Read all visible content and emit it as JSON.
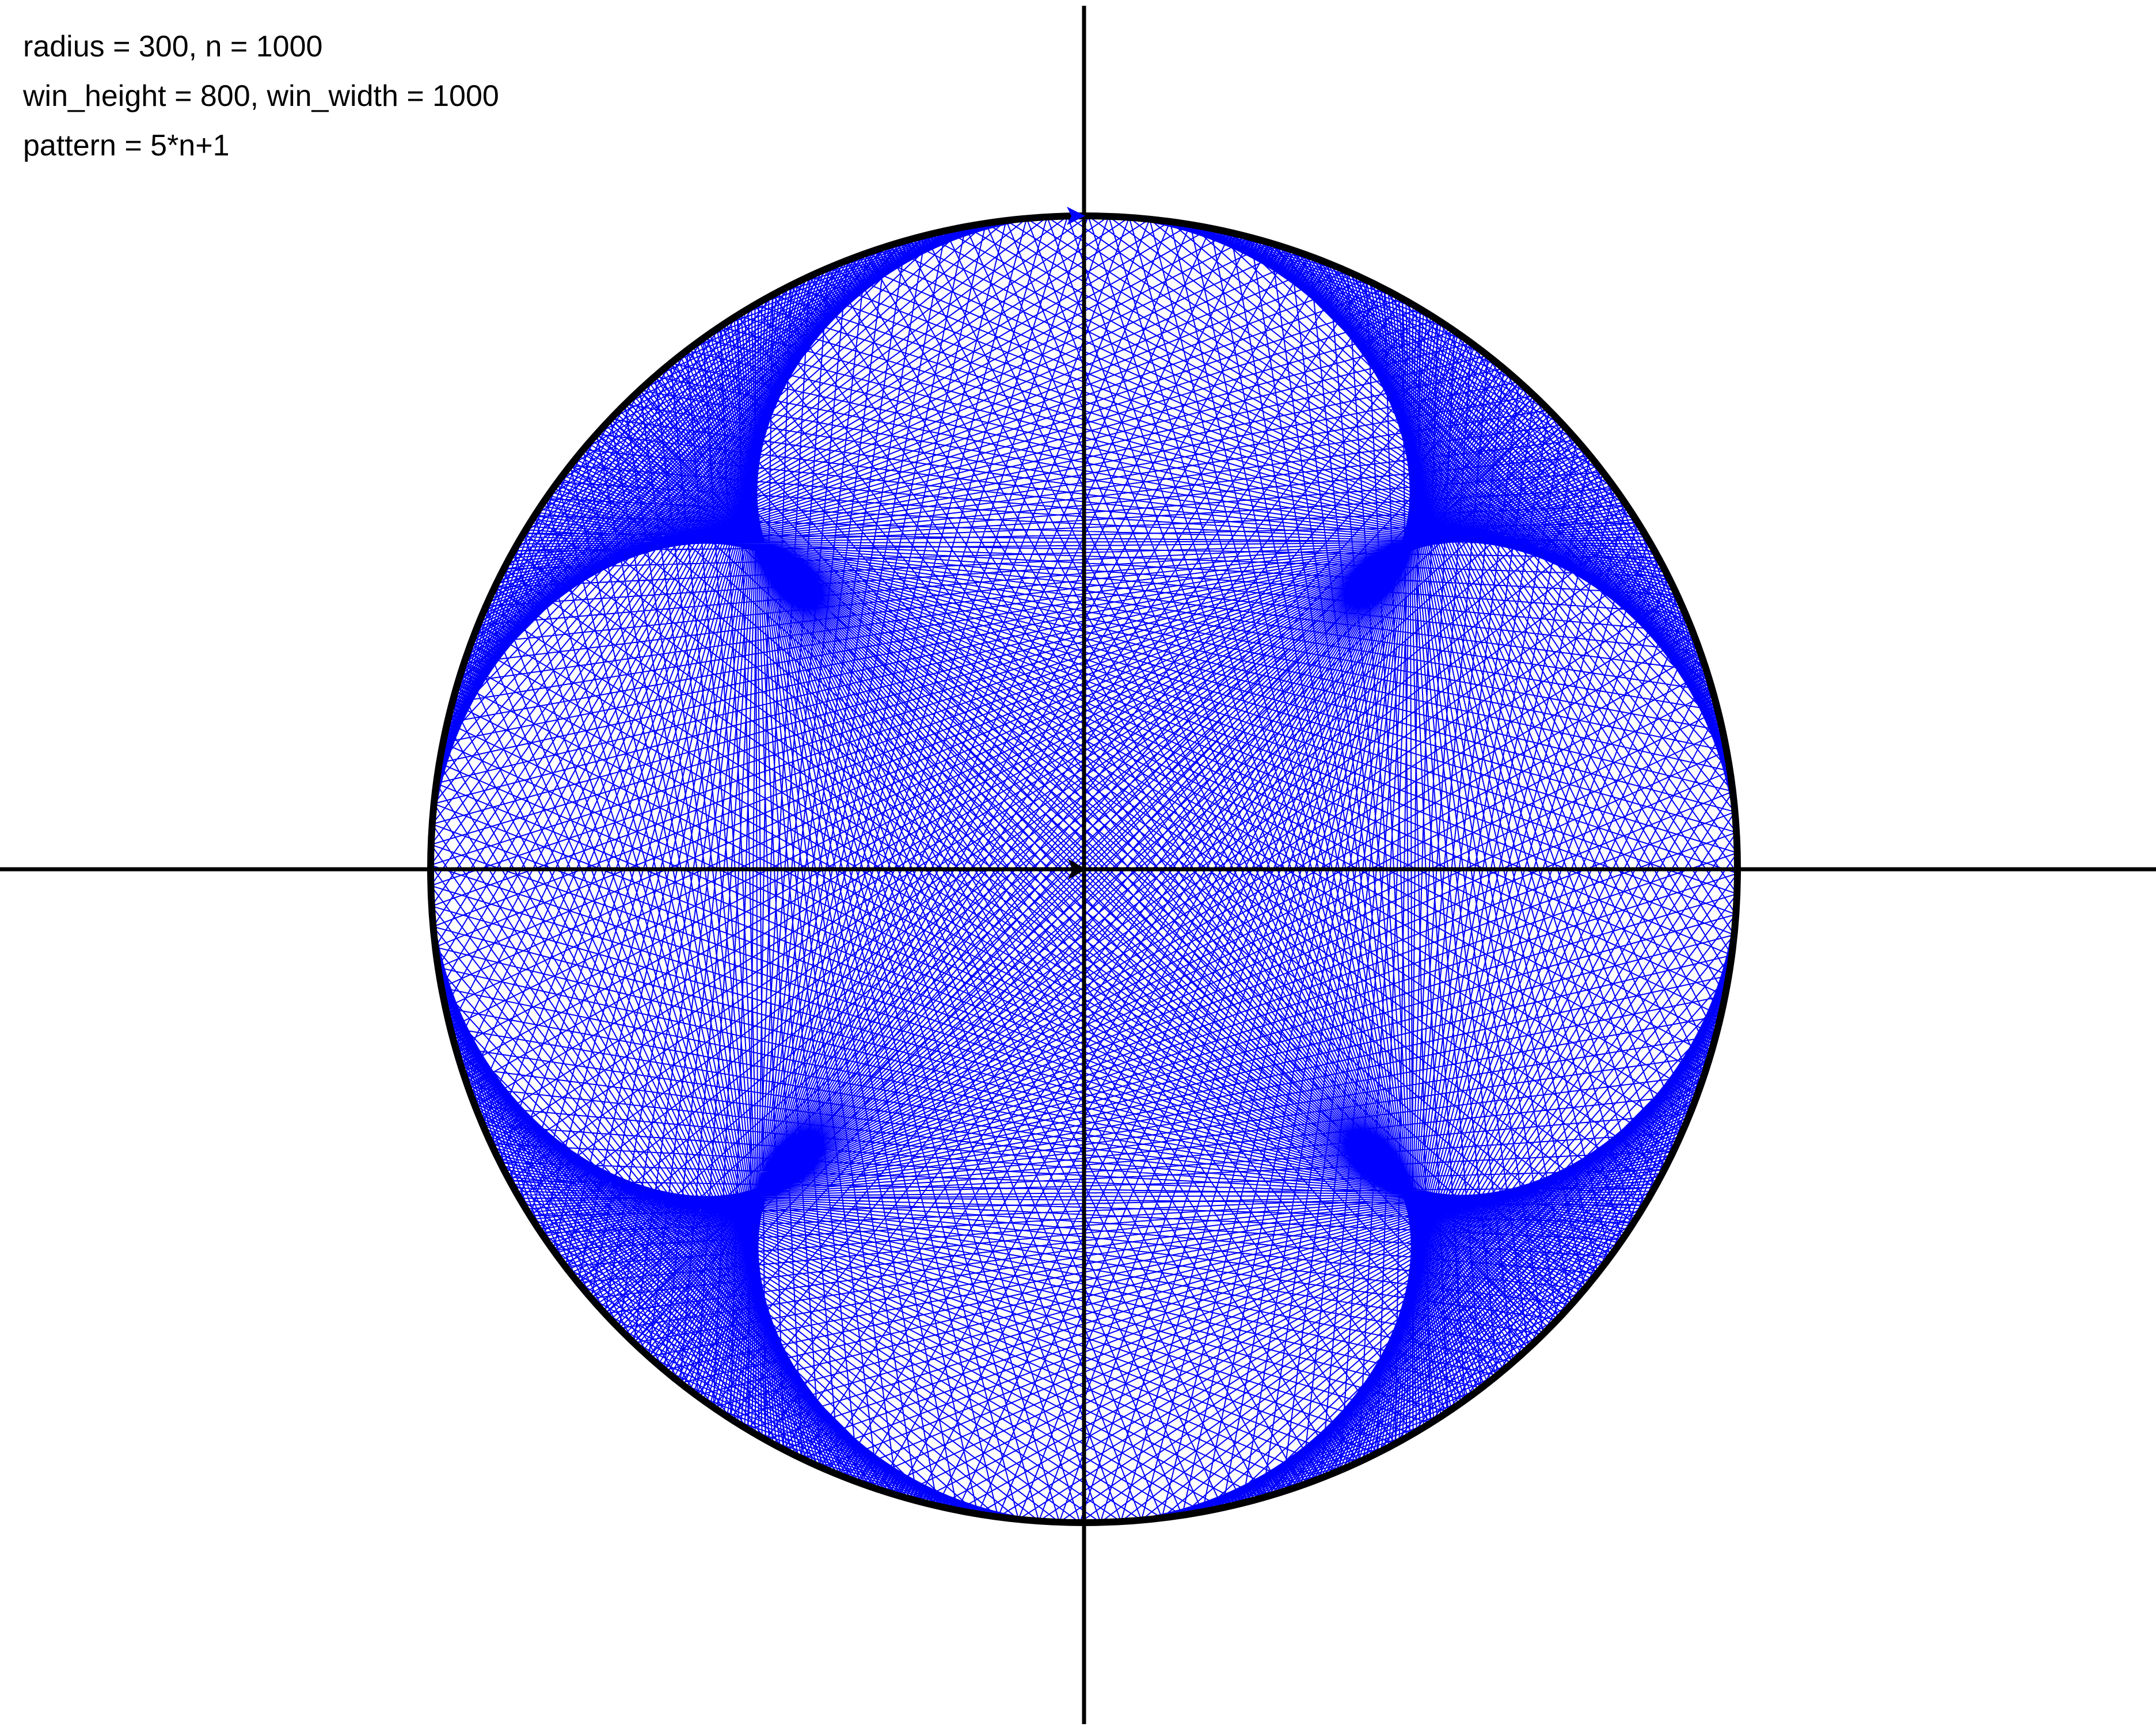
{
  "info": {
    "line1": "radius = 300, n = 1000",
    "line2": "win_height = 800, win_width = 1000",
    "line3": "pattern = 5*n+1"
  },
  "drawing": {
    "radius": 300,
    "n": 1000,
    "multiplier": 5,
    "offset": 1,
    "chord_color": "#0000ff",
    "circle_color": "#000000",
    "axis_color": "#000000",
    "background": "#ffffff"
  }
}
